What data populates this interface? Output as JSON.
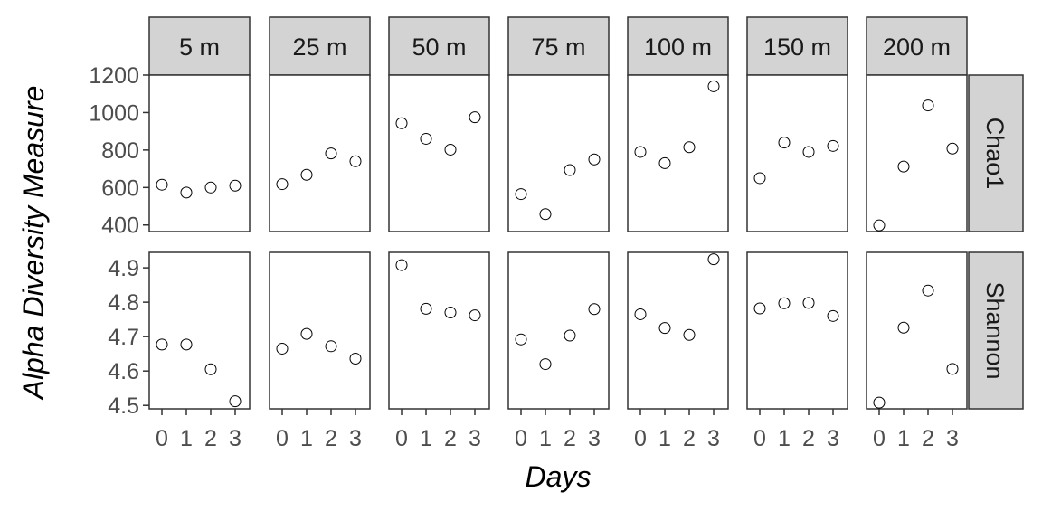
{
  "chart_data": {
    "type": "scatter",
    "xlabel": "Days",
    "ylabel": "Alpha Diversity Measure",
    "x": [
      0,
      1,
      2,
      3
    ],
    "x_ticks": [
      "0",
      "1",
      "2",
      "3"
    ],
    "columns": [
      "5 m",
      "25 m",
      "50 m",
      "75 m",
      "100 m",
      "150 m",
      "200 m"
    ],
    "rows": [
      {
        "name": "Chao1",
        "ylim": [
          365,
          1200
        ],
        "y_ticks": [
          400,
          600,
          800,
          1000,
          1200
        ],
        "tick_labels": [
          "400",
          "600",
          "800",
          "1000",
          "1200"
        ],
        "values": [
          [
            615,
            573,
            600,
            610
          ],
          [
            618,
            668,
            782,
            740
          ],
          [
            943,
            860,
            802,
            975
          ],
          [
            565,
            458,
            693,
            750
          ],
          [
            790,
            730,
            815,
            1140
          ],
          [
            650,
            840,
            790,
            822
          ],
          [
            398,
            712,
            1038,
            808
          ]
        ]
      },
      {
        "name": "Shannon",
        "ylim": [
          4.49,
          4.945
        ],
        "y_ticks": [
          4.5,
          4.6,
          4.7,
          4.8,
          4.9
        ],
        "tick_labels": [
          "4.5",
          "4.6",
          "4.7",
          "4.8",
          "4.9"
        ],
        "values": [
          [
            4.677,
            4.677,
            4.605,
            4.512
          ],
          [
            4.665,
            4.708,
            4.672,
            4.636
          ],
          [
            4.908,
            4.781,
            4.77,
            4.762
          ],
          [
            4.692,
            4.62,
            4.703,
            4.78
          ],
          [
            4.765,
            4.725,
            4.705,
            4.925
          ],
          [
            4.782,
            4.797,
            4.798,
            4.76
          ],
          [
            4.508,
            4.726,
            4.834,
            4.606
          ]
        ]
      }
    ]
  }
}
